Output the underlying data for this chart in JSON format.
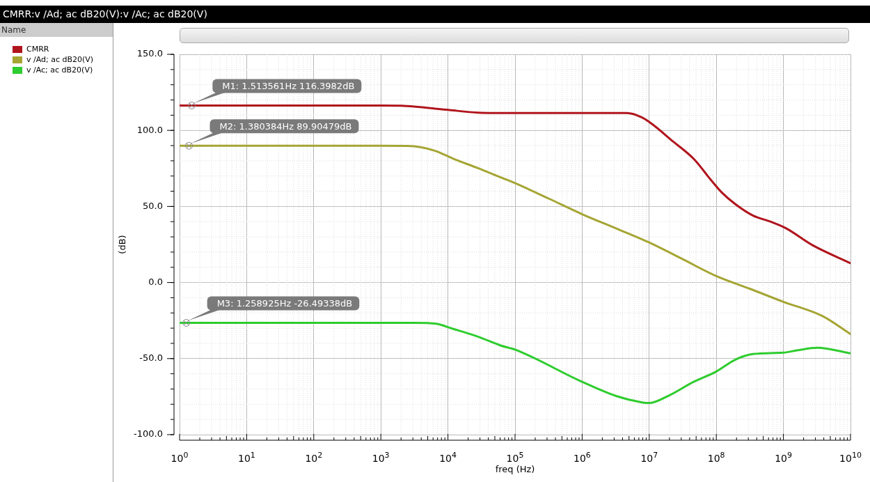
{
  "chart_data": {
    "type": "line",
    "title": "CMRR:v /Ad; ac dB20(V):v /Ac; ac dB20(V)",
    "legend_title": "Name",
    "xlabel": "freq (Hz)",
    "ylabel": "(dB)",
    "log": "x",
    "grid": true,
    "legend": "left",
    "marker": "none",
    "line_style": "solid",
    "xlim": [
      1,
      10000000000
    ],
    "xticks": [
      {
        "value": 1,
        "label": "10$^{0}$"
      },
      {
        "value": 10,
        "label": "10$^{1}$"
      },
      {
        "value": 100,
        "label": "10$^{2}$"
      },
      {
        "value": 1000,
        "label": "10$^{3}$"
      },
      {
        "value": 10000,
        "label": "10$^{4}$"
      },
      {
        "value": 100000,
        "label": "10$^{5}$"
      },
      {
        "value": 1000000,
        "label": "10$^{6}$"
      },
      {
        "value": 10000000,
        "label": "10$^{7}$"
      },
      {
        "value": 100000000,
        "label": "10$^{8}$"
      },
      {
        "value": 1000000000,
        "label": "10$^{9}$"
      },
      {
        "value": 10000000000,
        "label": "10$^{10}$"
      }
    ],
    "ylim": [
      -100,
      150
    ],
    "yticks": [
      {
        "value": -100,
        "label": "-100.0"
      },
      {
        "value": -50,
        "label": "-50.0"
      },
      {
        "value": 0,
        "label": "0.0"
      },
      {
        "value": 50,
        "label": "50.0"
      },
      {
        "value": 100,
        "label": "100.0"
      },
      {
        "value": 150,
        "label": "150.0"
      }
    ],
    "series": [
      {
        "name": "CMRR",
        "color": "#b0141c",
        "x": [
          1,
          1000,
          2000,
          9500,
          28000,
          100000,
          1000000,
          4600000,
          7800000,
          11000000,
          22000000,
          46000000,
          85000000,
          120000000,
          190000000,
          350000000,
          660000000,
          1100000000,
          2700000000,
          10000000000
        ],
        "values": [
          116.4,
          116.4,
          116.2,
          113.6,
          111.7,
          111.4,
          111.4,
          111.4,
          108.5,
          104.2,
          93.2,
          81.3,
          66.9,
          59.3,
          51.7,
          44.1,
          39.8,
          35.6,
          24.6,
          12.7
        ]
      },
      {
        "name": "v /Ad; ac dB20(V)",
        "color": "#a5a534",
        "x": [
          1,
          1000,
          2500,
          3900,
          6600,
          12000,
          28000,
          62000,
          100000,
          320000,
          1000000,
          3200000,
          10000000,
          32000000,
          100000000,
          320000000,
          1000000000,
          3800000000,
          10000000000
        ],
        "values": [
          89.9,
          89.9,
          89.8,
          89.0,
          86.4,
          81.4,
          75.2,
          69.0,
          65.3,
          55.1,
          44.9,
          35.6,
          26.3,
          15.2,
          4.2,
          -4.2,
          -12.7,
          -22,
          -33.9
        ]
      },
      {
        "name": "v /Ac; ac dB20(V)",
        "color": "#2ecc2e",
        "x": [
          1,
          1000,
          3300,
          6600,
          12000,
          28000,
          62000,
          100000,
          1000000,
          3200000,
          7800000,
          10000000,
          19000000,
          46000000,
          100000000,
          190000000,
          350000000,
          1000000000,
          1600000000,
          3200000000,
          10000000000
        ],
        "values": [
          -26.5,
          -26.5,
          -26.5,
          -27.1,
          -30.5,
          -35.6,
          -41.5,
          -44.1,
          -65.3,
          -74.6,
          -78.8,
          -79.2,
          -74.6,
          -65.3,
          -58.5,
          -50.8,
          -47,
          -46.1,
          -44.6,
          -42.9,
          -46.6
        ]
      }
    ],
    "annotations": [
      {
        "text": "M1: 1.513561Hz 116.3982dB",
        "x": 1.513561,
        "y": 116.3982
      },
      {
        "text": "M2: 1.380384Hz 89.90479dB",
        "x": 1.380384,
        "y": 89.90479
      },
      {
        "text": "M3: 1.258925Hz -26.49338dB",
        "x": 1.258925,
        "y": -26.49338
      }
    ]
  }
}
